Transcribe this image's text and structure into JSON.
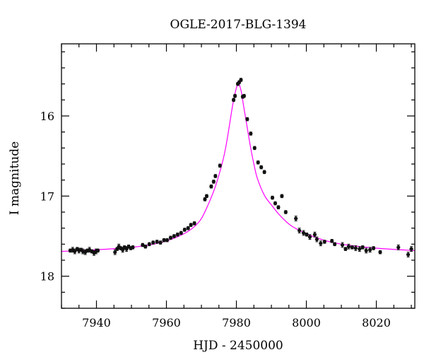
{
  "chart_data": {
    "type": "scatter",
    "title": "OGLE-2017-BLG-1394",
    "xlabel": "HJD - 2450000",
    "ylabel": "I magnitude",
    "xlim": [
      7930,
      8031
    ],
    "ylim": [
      18.4,
      15.1
    ],
    "y_inverted": true,
    "grid": false,
    "x_major_ticks": [
      7940,
      7960,
      7980,
      8000,
      8020
    ],
    "y_major_ticks": [
      16,
      17,
      18
    ],
    "x_tick_labels": [
      "7940",
      "7960",
      "7980",
      "8000",
      "8020"
    ],
    "y_tick_labels": [
      "16",
      "17",
      "18"
    ],
    "model_curve": {
      "name": "",
      "color": "#ff00ff",
      "x": [
        7930,
        7940,
        7950,
        7955,
        7960,
        7965,
        7968,
        7970,
        7972,
        7974,
        7976,
        7977,
        7978,
        7979,
        7980,
        7980.6,
        7981,
        7981.5,
        7982,
        7983,
        7984,
        7985,
        7986,
        7988,
        7990,
        7992,
        7994,
        7996,
        8000,
        8005,
        8010,
        8020,
        8031
      ],
      "y": [
        17.69,
        17.67,
        17.64,
        17.61,
        17.56,
        17.47,
        17.38,
        17.28,
        17.1,
        16.88,
        16.58,
        16.38,
        16.12,
        15.85,
        15.65,
        15.6,
        15.63,
        15.72,
        15.86,
        16.12,
        16.38,
        16.6,
        16.78,
        16.99,
        17.11,
        17.22,
        17.31,
        17.38,
        17.47,
        17.55,
        17.6,
        17.65,
        17.68
      ]
    },
    "series": [
      {
        "name": "",
        "color": "#111111",
        "x": [
          7932.5,
          7933.2,
          7933.8,
          7934.5,
          7935.0,
          7935.6,
          7936.1,
          7936.8,
          7937.4,
          7938.0,
          7938.7,
          7939.3,
          7939.9,
          7940.4,
          7945.3,
          7945.9,
          7946.4,
          7946.9,
          7947.5,
          7948.0,
          7948.6,
          7949.2,
          7949.8,
          7950.4,
          7953.2,
          7954.0,
          7955.1,
          7956.2,
          7957.3,
          7958.3,
          7959.3,
          7960.2,
          7961.2,
          7962.2,
          7963.2,
          7964.2,
          7965.2,
          7966.2,
          7967.0,
          7968.0,
          7971.0,
          7971.5,
          7972.8,
          7973.5,
          7974.0,
          7975.3,
          7979.2,
          7979.6,
          7980.4,
          7980.8,
          7981.3,
          7981.8,
          7982.2,
          7983.1,
          7984.1,
          7985.2,
          7986.2,
          7987.1,
          7988.0,
          7990.3,
          7991.1,
          7992.0,
          7993.0,
          7994.1,
          7997.0,
          7998.0,
          7999.2,
          8000.1,
          8001.0,
          8002.4,
          8003.0,
          8004.1,
          8005.2,
          8007.3,
          8008.1,
          8010.3,
          8011.2,
          8012.1,
          8013.1,
          8014.1,
          8015.2,
          8016.1,
          8017.1,
          8018.2,
          8019.2,
          8021.1,
          8026.3,
          8029.1,
          8030.0
        ],
        "y": [
          17.68,
          17.67,
          17.69,
          17.66,
          17.68,
          17.67,
          17.69,
          17.7,
          17.68,
          17.67,
          17.69,
          17.71,
          17.69,
          17.68,
          17.7,
          17.66,
          17.63,
          17.65,
          17.67,
          17.64,
          17.66,
          17.63,
          17.65,
          17.64,
          17.61,
          17.63,
          17.6,
          17.58,
          17.57,
          17.58,
          17.55,
          17.55,
          17.52,
          17.5,
          17.48,
          17.46,
          17.42,
          17.4,
          17.36,
          17.34,
          17.04,
          17.0,
          16.88,
          16.82,
          16.75,
          16.62,
          15.8,
          15.75,
          15.6,
          15.58,
          15.55,
          15.76,
          15.75,
          16.04,
          16.22,
          16.4,
          16.58,
          16.64,
          16.7,
          17.02,
          17.09,
          17.14,
          17.0,
          17.2,
          17.28,
          17.43,
          17.46,
          17.48,
          17.51,
          17.48,
          17.54,
          17.59,
          17.57,
          17.56,
          17.6,
          17.61,
          17.66,
          17.63,
          17.64,
          17.65,
          17.66,
          17.64,
          17.68,
          17.67,
          17.65,
          17.7,
          17.64,
          17.73,
          17.66
        ],
        "err": [
          0.02,
          0.03,
          0.03,
          0.02,
          0.03,
          0.02,
          0.03,
          0.03,
          0.02,
          0.03,
          0.02,
          0.03,
          0.03,
          0.02,
          0.03,
          0.02,
          0.03,
          0.02,
          0.03,
          0.02,
          0.03,
          0.02,
          0.02,
          0.02,
          0.02,
          0.02,
          0.02,
          0.02,
          0.02,
          0.02,
          0.02,
          0.02,
          0.02,
          0.02,
          0.02,
          0.02,
          0.02,
          0.02,
          0.02,
          0.02,
          0.02,
          0.02,
          0.02,
          0.02,
          0.02,
          0.02,
          0.02,
          0.02,
          0.02,
          0.02,
          0.02,
          0.02,
          0.02,
          0.02,
          0.02,
          0.02,
          0.02,
          0.02,
          0.02,
          0.02,
          0.02,
          0.02,
          0.02,
          0.02,
          0.03,
          0.03,
          0.03,
          0.02,
          0.03,
          0.03,
          0.03,
          0.03,
          0.02,
          0.02,
          0.02,
          0.03,
          0.02,
          0.03,
          0.02,
          0.03,
          0.03,
          0.02,
          0.03,
          0.03,
          0.02,
          0.02,
          0.03,
          0.03,
          0.03
        ]
      }
    ]
  }
}
